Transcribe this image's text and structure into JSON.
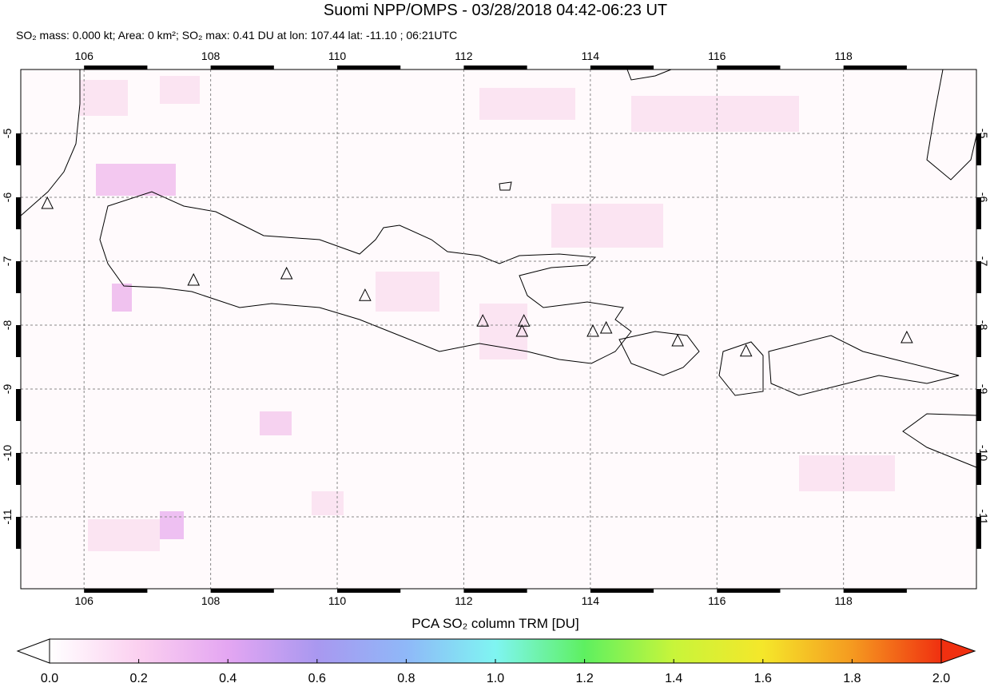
{
  "map": {
    "title": "Suomi NPP/OMPS - 03/28/2018 04:42-06:23 UT",
    "subtitle": "SO₂ mass: 0.000 kt; Area: 0 km²; SO₂ max: 0.41 DU at lon: 107.44 lat: -11.10 ; 06:21UTC",
    "lonlim": [
      105.0,
      120.1
    ],
    "latlim": [
      -12.125,
      -4.0
    ],
    "lon_ticks": [
      106,
      108,
      110,
      112,
      114,
      116,
      118
    ],
    "lat_ticks": [
      -5,
      -6,
      -7,
      -8,
      -9,
      -10,
      -11
    ],
    "volcanoes": [
      {
        "lon": 105.42,
        "lat": -6.1
      },
      {
        "lon": 107.73,
        "lat": -7.3
      },
      {
        "lon": 109.2,
        "lat": -7.2
      },
      {
        "lon": 110.44,
        "lat": -7.54
      },
      {
        "lon": 112.3,
        "lat": -7.94
      },
      {
        "lon": 112.95,
        "lat": -7.94
      },
      {
        "lon": 112.92,
        "lat": -8.1
      },
      {
        "lon": 114.04,
        "lat": -8.1
      },
      {
        "lon": 114.25,
        "lat": -8.05
      },
      {
        "lon": 115.38,
        "lat": -8.25
      },
      {
        "lon": 116.46,
        "lat": -8.41
      },
      {
        "lon": 119.0,
        "lat": -8.2
      }
    ]
  },
  "colorbar": {
    "label": "PCA SO₂ column TRM [DU]",
    "lim": [
      0,
      2
    ],
    "colors": [
      "#ffffff",
      "#fbd0f0",
      "#e4a6f2",
      "#a998f0",
      "#8fb8f8",
      "#7ff5f2",
      "#5ef060",
      "#c8f53a",
      "#f5e72a",
      "#f59a20",
      "#f03010"
    ],
    "ticks": [
      {
        "value": 0,
        "label": "0.0"
      },
      {
        "value": 0.2,
        "label": "0.2"
      },
      {
        "value": 0.4,
        "label": "0.4"
      },
      {
        "value": 0.6,
        "label": "0.6"
      },
      {
        "value": 0.8,
        "label": "0.8"
      },
      {
        "value": 1,
        "label": "1.0"
      },
      {
        "value": 1.2,
        "label": "1.2"
      },
      {
        "value": 1.4,
        "label": "1.4"
      },
      {
        "value": 1.6,
        "label": "1.6"
      },
      {
        "value": 1.8,
        "label": "1.8"
      },
      {
        "value": 2,
        "label": "2.0"
      }
    ]
  }
}
